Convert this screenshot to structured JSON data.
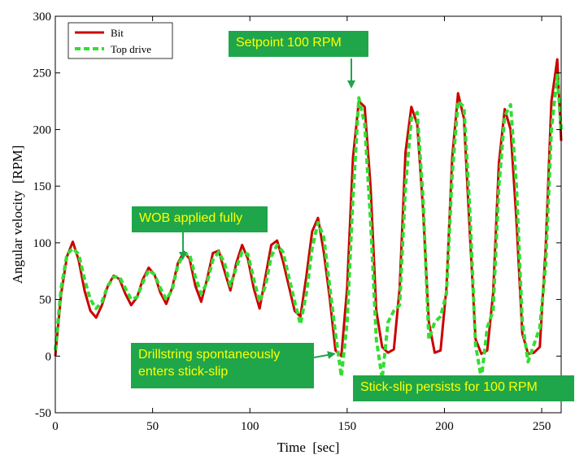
{
  "chart_data": {
    "type": "line",
    "xlabel": "Time  [sec]",
    "ylabel": "Angular velocity  [RPM]",
    "xlim": [
      0,
      260
    ],
    "ylim": [
      -50,
      300
    ],
    "xticks": [
      0,
      50,
      100,
      150,
      200,
      250
    ],
    "yticks": [
      -50,
      0,
      50,
      100,
      150,
      200,
      250,
      300
    ],
    "grid": false,
    "legend_position": "top-left",
    "series": [
      {
        "name": "Bit",
        "color": "#cc0000",
        "style": "solid",
        "x": [
          0,
          3,
          6,
          9,
          12,
          15,
          18,
          21,
          24,
          27,
          30,
          33,
          36,
          39,
          42,
          45,
          48,
          51,
          54,
          57,
          60,
          63,
          66,
          69,
          72,
          75,
          78,
          81,
          84,
          87,
          90,
          93,
          96,
          99,
          102,
          105,
          108,
          111,
          114,
          117,
          120,
          123,
          126,
          129,
          132,
          135,
          138,
          141,
          144,
          147,
          150,
          153,
          156,
          159,
          162,
          165,
          168,
          171,
          174,
          177,
          180,
          183,
          186,
          189,
          192,
          195,
          198,
          201,
          204,
          207,
          210,
          213,
          216,
          219,
          222,
          225,
          228,
          231,
          234,
          237,
          240,
          243,
          246,
          249,
          252,
          255,
          258,
          260
        ],
        "y": [
          0,
          55,
          88,
          101,
          85,
          58,
          40,
          34,
          45,
          62,
          71,
          68,
          55,
          45,
          52,
          68,
          78,
          72,
          56,
          46,
          60,
          82,
          92,
          86,
          62,
          48,
          68,
          91,
          93,
          75,
          58,
          82,
          98,
          86,
          60,
          42,
          70,
          98,
          102,
          84,
          62,
          40,
          35,
          70,
          110,
          122,
          92,
          52,
          5,
          0,
          60,
          175,
          225,
          220,
          150,
          40,
          8,
          3,
          6,
          60,
          180,
          220,
          205,
          130,
          30,
          3,
          5,
          60,
          175,
          232,
          210,
          110,
          15,
          2,
          5,
          55,
          170,
          218,
          200,
          120,
          20,
          2,
          3,
          8,
          95,
          225,
          262,
          190
        ]
      },
      {
        "name": "Top drive",
        "color": "#33dd33",
        "style": "dashed",
        "x": [
          0,
          3,
          6,
          9,
          12,
          15,
          18,
          21,
          24,
          27,
          30,
          33,
          36,
          39,
          42,
          45,
          48,
          51,
          54,
          57,
          60,
          63,
          66,
          69,
          72,
          75,
          78,
          81,
          84,
          87,
          90,
          93,
          96,
          99,
          102,
          105,
          108,
          111,
          114,
          117,
          120,
          123,
          126,
          129,
          132,
          135,
          138,
          141,
          144,
          147,
          150,
          153,
          156,
          159,
          162,
          165,
          168,
          171,
          174,
          177,
          180,
          183,
          186,
          189,
          192,
          195,
          198,
          201,
          204,
          207,
          210,
          213,
          216,
          219,
          222,
          225,
          228,
          231,
          234,
          237,
          240,
          243,
          246,
          249,
          252,
          255,
          258,
          260
        ],
        "y": [
          5,
          60,
          90,
          95,
          90,
          68,
          50,
          42,
          48,
          62,
          70,
          70,
          60,
          50,
          52,
          65,
          76,
          72,
          60,
          50,
          58,
          80,
          90,
          90,
          70,
          55,
          65,
          85,
          92,
          82,
          62,
          78,
          92,
          90,
          68,
          48,
          62,
          88,
          98,
          92,
          70,
          48,
          28,
          55,
          95,
          118,
          105,
          62,
          20,
          -18,
          30,
          140,
          228,
          205,
          120,
          15,
          -20,
          30,
          40,
          45,
          150,
          210,
          215,
          140,
          15,
          30,
          35,
          55,
          160,
          225,
          220,
          130,
          10,
          -20,
          25,
          40,
          150,
          212,
          222,
          150,
          30,
          -5,
          10,
          25,
          80,
          200,
          248,
          200
        ]
      }
    ],
    "annotations": [
      {
        "text": "Setpoint 100 RPM",
        "arrow_x": 151,
        "arrow_y": 235
      },
      {
        "text": "WOB applied fully",
        "arrow_x": 65,
        "arrow_y": 85
      },
      {
        "text": "Drillstring spontaneously\nenters stick-slip",
        "arrow_x": 146,
        "arrow_y": -2
      },
      {
        "text": "Stick-slip persists for 100 RPM"
      }
    ]
  }
}
